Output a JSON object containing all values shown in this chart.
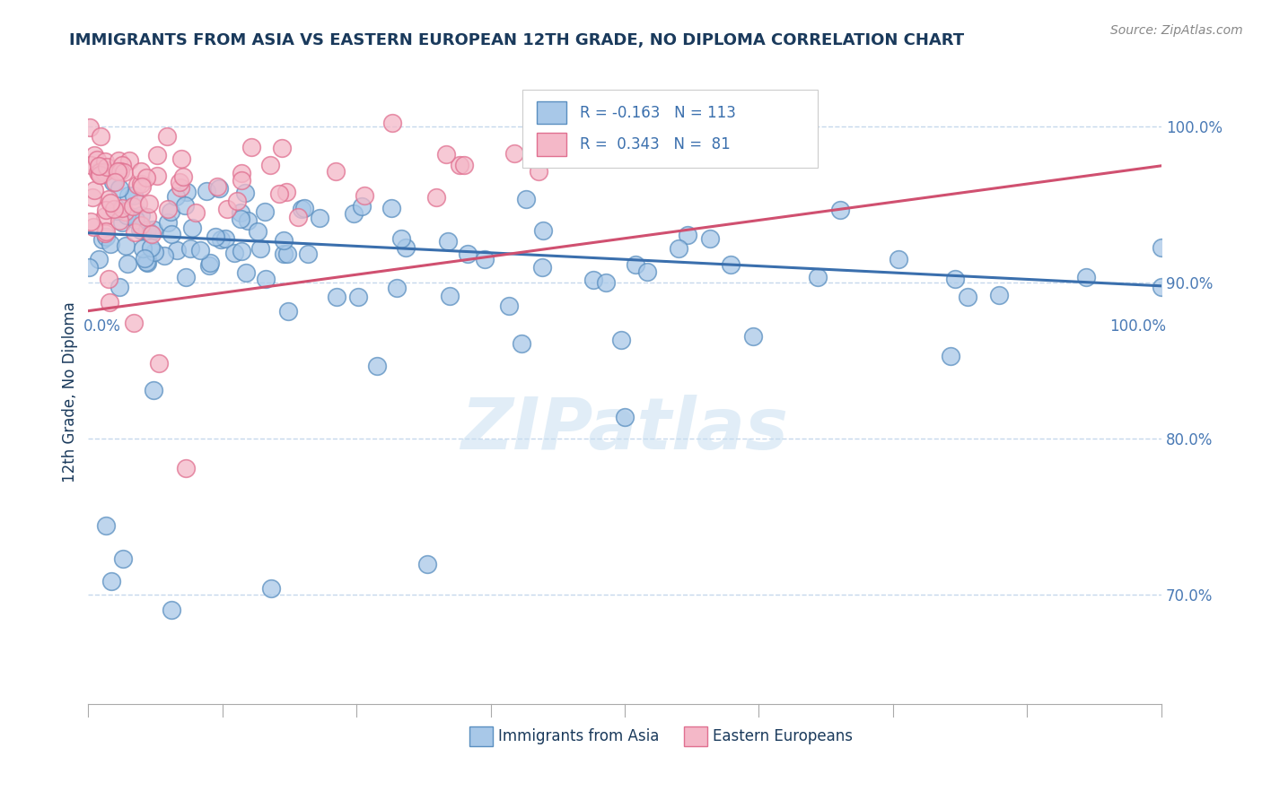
{
  "title": "IMMIGRANTS FROM ASIA VS EASTERN EUROPEAN 12TH GRADE, NO DIPLOMA CORRELATION CHART",
  "source": "Source: ZipAtlas.com",
  "ylabel": "12th Grade, No Diploma",
  "xlim": [
    0.0,
    1.0
  ],
  "ylim": [
    0.63,
    1.03
  ],
  "yticks": [
    0.7,
    0.8,
    0.9,
    1.0
  ],
  "ytick_labels": [
    "70.0%",
    "80.0%",
    "90.0%",
    "100.0%"
  ],
  "blue_R": -0.163,
  "blue_N": 113,
  "pink_R": 0.343,
  "pink_N": 81,
  "blue_color": "#a8c8e8",
  "pink_color": "#f4b8c8",
  "blue_edge_color": "#5a8fc0",
  "pink_edge_color": "#e07090",
  "blue_line_color": "#3a6fad",
  "pink_line_color": "#d05070",
  "legend_label_blue": "Immigrants from Asia",
  "legend_label_pink": "Eastern Europeans",
  "watermark": "ZIPatlas",
  "background_color": "#ffffff",
  "grid_color": "#b8cfe8",
  "title_color": "#1a3a5c",
  "axis_label_color": "#1a3a5c",
  "tick_color": "#4a7ab5",
  "blue_line_y0": 0.932,
  "blue_line_y1": 0.898,
  "pink_line_x0": 0.0,
  "pink_line_x1": 1.0,
  "pink_line_y0": 0.882,
  "pink_line_y1": 0.975
}
